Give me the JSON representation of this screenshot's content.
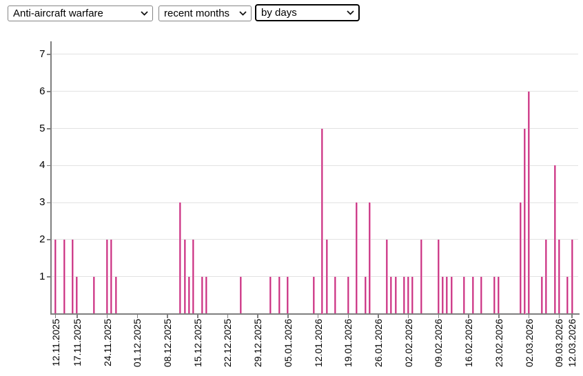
{
  "toolbar": {
    "selects": [
      {
        "name": "weapon-category",
        "value": "Anti-aircraft warfare"
      },
      {
        "name": "period",
        "value": "recent months"
      },
      {
        "name": "granularity",
        "value": "by days"
      }
    ]
  },
  "colors": {
    "bar_core": "#c5307f",
    "bar_edge_left": "#d85a9e",
    "bar_edge_right": "#efa0c8",
    "axis": "#7e7e7e",
    "gridline": "#e2e2e2",
    "text": "#000000"
  },
  "chart_data": {
    "type": "bar",
    "title": "",
    "xlabel": "",
    "ylabel": "",
    "ylim": [
      0,
      7.35
    ],
    "grid": "horizontal",
    "legend": "none",
    "x_tick_rotation": -90,
    "yticks": [
      1,
      2,
      3,
      4,
      5,
      6,
      7
    ],
    "xticks": [
      {
        "day": 0,
        "label": "12.11.2025"
      },
      {
        "day": 5,
        "label": "17.11.2025"
      },
      {
        "day": 12,
        "label": "24.11.2025"
      },
      {
        "day": 19,
        "label": "01.12.2025"
      },
      {
        "day": 26,
        "label": "08.12.2025"
      },
      {
        "day": 33,
        "label": "15.12.2025"
      },
      {
        "day": 40,
        "label": "22.12.2025"
      },
      {
        "day": 47,
        "label": "29.12.2025"
      },
      {
        "day": 54,
        "label": "05.01.2026"
      },
      {
        "day": 61,
        "label": "12.01.2026"
      },
      {
        "day": 68,
        "label": "19.01.2026"
      },
      {
        "day": 75,
        "label": "26.01.2026"
      },
      {
        "day": 82,
        "label": "02.02.2026"
      },
      {
        "day": 89,
        "label": "09.02.2026"
      },
      {
        "day": 96,
        "label": "16.02.2026"
      },
      {
        "day": 103,
        "label": "23.02.2026"
      },
      {
        "day": 110,
        "label": "02.03.2026"
      },
      {
        "day": 117,
        "label": "09.03.2026"
      },
      {
        "day": 120,
        "label": "12.03.2026"
      }
    ],
    "bars": [
      {
        "date": "12.11.2025",
        "day": 0,
        "value": 2
      },
      {
        "date": "14.11.2025",
        "day": 2,
        "value": 2
      },
      {
        "date": "16.11.2025",
        "day": 4,
        "value": 2
      },
      {
        "date": "17.11.2025",
        "day": 5,
        "value": 1
      },
      {
        "date": "21.11.2025",
        "day": 9,
        "value": 1
      },
      {
        "date": "24.11.2025",
        "day": 12,
        "value": 2
      },
      {
        "date": "25.11.2025",
        "day": 13,
        "value": 2
      },
      {
        "date": "26.11.2025",
        "day": 14,
        "value": 1
      },
      {
        "date": "11.12.2025",
        "day": 29,
        "value": 3
      },
      {
        "date": "12.12.2025",
        "day": 30,
        "value": 2
      },
      {
        "date": "13.12.2025",
        "day": 31,
        "value": 1
      },
      {
        "date": "14.12.2025",
        "day": 32,
        "value": 2
      },
      {
        "date": "16.12.2025",
        "day": 34,
        "value": 1
      },
      {
        "date": "17.12.2025",
        "day": 35,
        "value": 1
      },
      {
        "date": "25.12.2025",
        "day": 43,
        "value": 1
      },
      {
        "date": "01.01.2026",
        "day": 50,
        "value": 1
      },
      {
        "date": "03.01.2026",
        "day": 52,
        "value": 1
      },
      {
        "date": "05.01.2026",
        "day": 54,
        "value": 1
      },
      {
        "date": "11.01.2026",
        "day": 60,
        "value": 1
      },
      {
        "date": "13.01.2026",
        "day": 62,
        "value": 5
      },
      {
        "date": "14.01.2026",
        "day": 63,
        "value": 2
      },
      {
        "date": "16.01.2026",
        "day": 65,
        "value": 1
      },
      {
        "date": "19.01.2026",
        "day": 68,
        "value": 1
      },
      {
        "date": "21.01.2026",
        "day": 70,
        "value": 3
      },
      {
        "date": "23.01.2026",
        "day": 72,
        "value": 1
      },
      {
        "date": "24.01.2026",
        "day": 73,
        "value": 3
      },
      {
        "date": "28.01.2026",
        "day": 77,
        "value": 2
      },
      {
        "date": "29.01.2026",
        "day": 78,
        "value": 1
      },
      {
        "date": "30.01.2026",
        "day": 79,
        "value": 1
      },
      {
        "date": "01.02.2026",
        "day": 81,
        "value": 1
      },
      {
        "date": "02.02.2026",
        "day": 82,
        "value": 1
      },
      {
        "date": "03.02.2026",
        "day": 83,
        "value": 1
      },
      {
        "date": "05.02.2026",
        "day": 85,
        "value": 2
      },
      {
        "date": "09.02.2026",
        "day": 89,
        "value": 2
      },
      {
        "date": "10.02.2026",
        "day": 90,
        "value": 1
      },
      {
        "date": "11.02.2026",
        "day": 91,
        "value": 1
      },
      {
        "date": "12.02.2026",
        "day": 92,
        "value": 1
      },
      {
        "date": "15.02.2026",
        "day": 95,
        "value": 1
      },
      {
        "date": "17.02.2026",
        "day": 97,
        "value": 1
      },
      {
        "date": "19.02.2026",
        "day": 99,
        "value": 1
      },
      {
        "date": "22.02.2026",
        "day": 102,
        "value": 1
      },
      {
        "date": "23.02.2026",
        "day": 103,
        "value": 1
      },
      {
        "date": "28.02.2026",
        "day": 108,
        "value": 3
      },
      {
        "date": "01.03.2026",
        "day": 109,
        "value": 5
      },
      {
        "date": "02.03.2026",
        "day": 110,
        "value": 6
      },
      {
        "date": "05.03.2026",
        "day": 113,
        "value": 1
      },
      {
        "date": "06.03.2026",
        "day": 114,
        "value": 2
      },
      {
        "date": "08.03.2026",
        "day": 116,
        "value": 4
      },
      {
        "date": "09.03.2026",
        "day": 117,
        "value": 2
      },
      {
        "date": "11.03.2026",
        "day": 119,
        "value": 1
      },
      {
        "date": "12.03.2026",
        "day": 120,
        "value": 2
      }
    ]
  }
}
